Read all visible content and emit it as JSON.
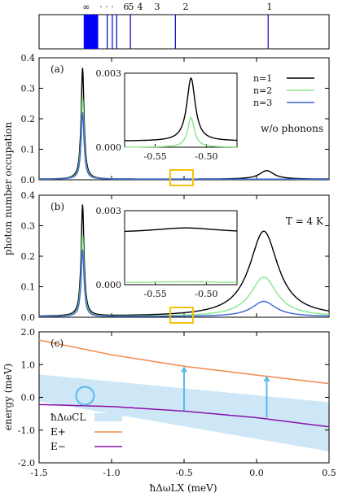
{
  "chart_data": [
    {
      "type": "line",
      "panel": "top-strip",
      "level_labels": [
        "∞",
        "· · ·",
        "6",
        "5",
        "4",
        "3",
        "2",
        "1"
      ],
      "level_positions_meV": [
        -1.19,
        -1.08,
        -1.03,
        -0.995,
        -0.965,
        -0.87,
        -0.56,
        0.08
      ]
    },
    {
      "type": "line",
      "panel": "a",
      "panel_label": "(a)",
      "note": "w/o phonons",
      "ylabel": "photon number occupation",
      "xlim": [
        -1.5,
        0.5
      ],
      "ylim": [
        0,
        0.4
      ],
      "yticks": [
        "0.0",
        "0.1",
        "0.2",
        "0.3",
        "0.4"
      ],
      "series": [
        {
          "name": "n=1",
          "color": "#000000",
          "peaks": [
            [
              -1.2,
              0.365,
              0.012
            ],
            [
              0.07,
              0.028,
              0.06
            ]
          ]
        },
        {
          "name": "n=2",
          "color": "#8ae68a",
          "peaks": [
            [
              -1.2,
              0.27,
              0.012
            ]
          ]
        },
        {
          "name": "n=3",
          "color": "#3a63d6",
          "peaks": [
            [
              -1.2,
              0.22,
              0.012
            ]
          ]
        }
      ],
      "inset": {
        "xlim": [
          -0.58,
          -0.47
        ],
        "ylim": [
          0,
          0.003
        ],
        "yticks": [
          "0.000",
          "0.003"
        ],
        "xticks": [
          "-0.55",
          "-0.50"
        ],
        "series": [
          {
            "name": "n=1",
            "color": "#000000",
            "base": 0.00025,
            "peak_x": -0.515,
            "peak_y": 0.0028,
            "width": 0.005
          },
          {
            "name": "n=2",
            "color": "#8ae68a",
            "base": 0.0,
            "peak_x": -0.515,
            "peak_y": 0.0012,
            "width": 0.004
          }
        ]
      }
    },
    {
      "type": "line",
      "panel": "b",
      "panel_label": "(b)",
      "note": "T = 4 K",
      "xlim": [
        -1.5,
        0.5
      ],
      "ylim": [
        0,
        0.4
      ],
      "yticks": [
        "0.0",
        "0.1",
        "0.2",
        "0.3",
        "0.4"
      ],
      "series": [
        {
          "name": "n=1",
          "color": "#000000",
          "peaks": [
            [
              -1.2,
              0.365,
              0.012
            ],
            [
              0.05,
              0.28,
              0.12
            ]
          ]
        },
        {
          "name": "n=2",
          "color": "#8ae68a",
          "peaks": [
            [
              -1.2,
              0.27,
              0.012
            ],
            [
              0.05,
              0.13,
              0.11
            ]
          ]
        },
        {
          "name": "n=3",
          "color": "#3a63d6",
          "peaks": [
            [
              -1.2,
              0.22,
              0.012
            ],
            [
              0.05,
              0.05,
              0.1
            ]
          ]
        }
      ],
      "inset": {
        "xlim": [
          -0.58,
          -0.47
        ],
        "ylim": [
          0,
          0.003
        ],
        "yticks": [
          "0.000",
          "0.003"
        ],
        "xticks": [
          "-0.55",
          "-0.50"
        ],
        "series": [
          {
            "name": "n=1",
            "color": "#000000",
            "base": 0.0021,
            "peak_x": -0.52,
            "peak_y": 0.0023,
            "width": 0.04
          },
          {
            "name": "n=2",
            "color": "#8ae68a",
            "base": 8e-05,
            "peak_x": -0.52,
            "peak_y": 0.00012,
            "width": 0.04
          }
        ]
      }
    },
    {
      "type": "line",
      "panel": "c",
      "panel_label": "(c)",
      "ylabel": "energy (meV)",
      "xlabel": "ħΔωLX (meV)",
      "xlim": [
        -1.5,
        0.5
      ],
      "ylim": [
        -2.0,
        2.0
      ],
      "xticks": [
        "-1.5",
        "-1.0",
        "-0.5",
        "0.0",
        "0.5"
      ],
      "yticks": [
        "2.0",
        "1.0",
        "0.0",
        "-1.0",
        "-2.0"
      ],
      "legend": [
        {
          "name": "ħΔωCL",
          "color": "#cde7f7"
        },
        {
          "name": "E+",
          "color": "#f08a4b"
        },
        {
          "name": "E−",
          "color": "#8b10a8"
        }
      ],
      "E_plus": {
        "x": [
          -1.5,
          -1.0,
          -0.5,
          0.0,
          0.5
        ],
        "y": [
          1.75,
          1.3,
          0.95,
          0.68,
          0.42
        ]
      },
      "E_minus": {
        "x": [
          -1.5,
          -1.0,
          -0.5,
          0.0,
          0.5
        ],
        "y": [
          -0.22,
          -0.28,
          -0.42,
          -0.62,
          -0.9
        ]
      },
      "band_upper": {
        "x": [
          -1.5,
          0.5
        ],
        "y": [
          0.7,
          -0.15
        ]
      },
      "band_lower": {
        "x": [
          -1.5,
          0.5
        ],
        "y": [
          -0.12,
          -1.65
        ]
      },
      "arrows": [
        {
          "x": -0.5,
          "y_from": -0.4,
          "y_to": 0.95
        },
        {
          "x": 0.07,
          "y_from": -0.62,
          "y_to": 0.66
        }
      ],
      "circle": {
        "x": -1.2,
        "y": 0.05
      }
    }
  ]
}
